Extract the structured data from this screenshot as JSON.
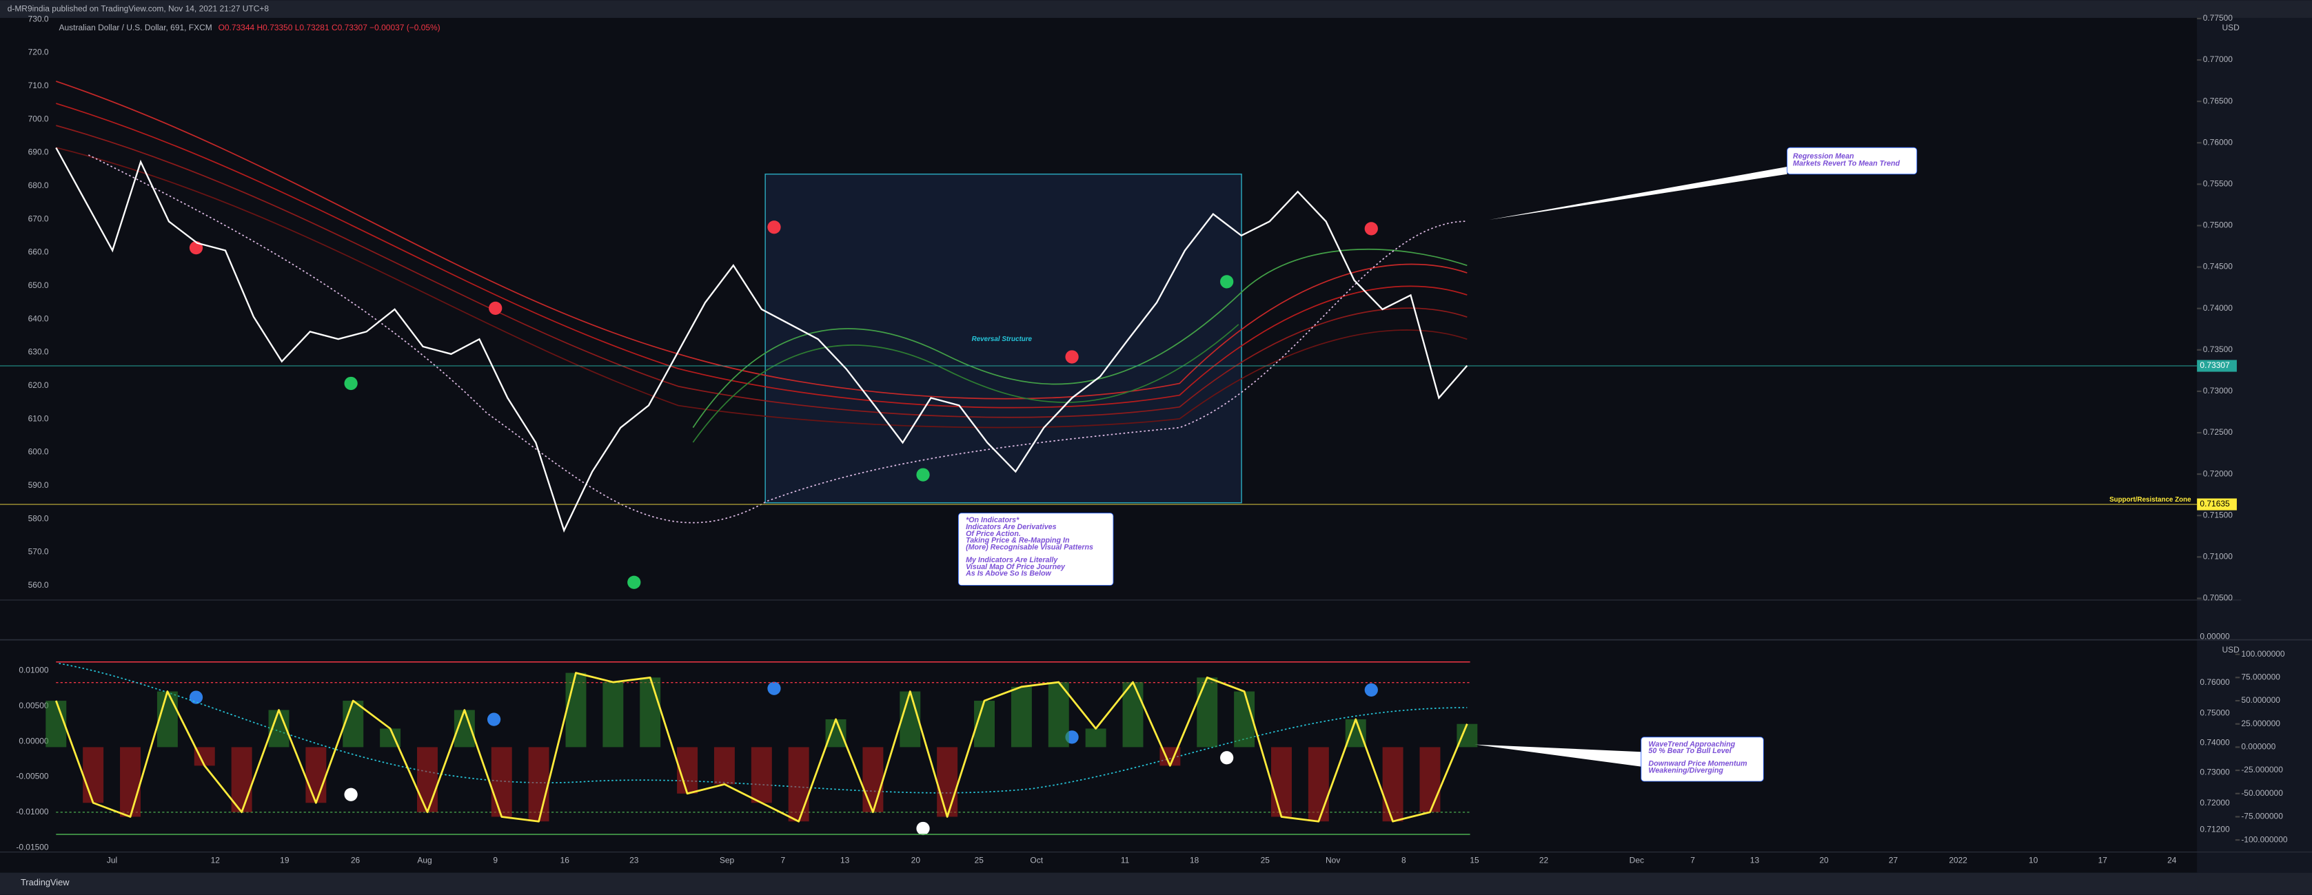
{
  "header": {
    "publisher": "d-MR9india published on TradingView.com, Nov 14, 2021 21:27 UTC+8",
    "symbol": "Australian Dollar / U.S. Dollar, 691, FXCM",
    "ohlc": "O0.73344 H0.73350 L0.73281 C0.73307 −0.00037 (−0.05%)"
  },
  "price_pane": {
    "currency": "USD",
    "ylim": [
      0.7048,
      0.7749
    ],
    "left_labels": [
      "730.0",
      "720.0",
      "710.0",
      "700.0",
      "690.0",
      "680.0",
      "670.0",
      "660.0",
      "650.0",
      "640.0",
      "630.0",
      "620.0",
      "610.0",
      "600.0",
      "590.0",
      "580.0",
      "570.0",
      "560.0"
    ],
    "right_ticks": [
      {
        "value": 0.775,
        "label": "0.77500"
      },
      {
        "value": 0.77,
        "label": "0.77000"
      },
      {
        "value": 0.765,
        "label": "0.76500"
      },
      {
        "value": 0.76,
        "label": "0.76000"
      },
      {
        "value": 0.755,
        "label": "0.75500"
      },
      {
        "value": 0.75,
        "label": "0.75000"
      },
      {
        "value": 0.745,
        "label": "0.74500"
      },
      {
        "value": 0.74,
        "label": "0.74000"
      },
      {
        "value": 0.735,
        "label": "0.73500"
      },
      {
        "value": 0.73,
        "label": "0.73000"
      },
      {
        "value": 0.725,
        "label": "0.72500"
      },
      {
        "value": 0.72,
        "label": "0.72000"
      },
      {
        "value": 0.715,
        "label": "0.71500"
      },
      {
        "value": 0.71,
        "label": "0.71000"
      },
      {
        "value": 0.705,
        "label": "0.70500"
      }
    ],
    "last_price": {
      "value": 0.73307,
      "label": "0.73307"
    },
    "support": {
      "value": 0.71635,
      "label": "0.71635",
      "name": "Support/Resistance Zone"
    },
    "close": [
      0.7594,
      0.7532,
      0.747,
      0.7577,
      0.7505,
      0.7479,
      0.747,
      0.739,
      0.7336,
      0.7372,
      0.7363,
      0.7372,
      0.7399,
      0.7354,
      0.7345,
      0.7363,
      0.7292,
      0.7238,
      0.7132,
      0.7203,
      0.7256,
      0.7283,
      0.7345,
      0.7407,
      0.7452,
      0.7399,
      0.7381,
      0.7363,
      0.7327,
      0.7283,
      0.7238,
      0.7292,
      0.7283,
      0.7238,
      0.7203,
      0.7256,
      0.7292,
      0.7318,
      0.7363,
      0.7407,
      0.747,
      0.7514,
      0.7488,
      0.7505,
      0.7541,
      0.7505,
      0.7434,
      0.7399,
      0.7416,
      0.7292,
      0.7331
    ]
  },
  "volume_pane": {
    "zero_label": "0.00000"
  },
  "oscillator_pane": {
    "currency": "USD",
    "ylim": [
      -113,
      114
    ],
    "left_labels": [
      "0.01000",
      "0.00500",
      "0.00000",
      "-0.00500",
      "-0.01000",
      "-0.01500"
    ],
    "right_ticks": [
      {
        "value": 100,
        "label": "100.000000"
      },
      {
        "value": 75,
        "label": "75.000000"
      },
      {
        "value": 50,
        "label": "50.000000"
      },
      {
        "value": 25,
        "label": "25.000000"
      },
      {
        "value": 0,
        "label": "0.000000"
      },
      {
        "value": -25,
        "label": "-25.000000"
      },
      {
        "value": -50,
        "label": "-50.000000"
      },
      {
        "value": -75,
        "label": "-75.000000"
      },
      {
        "value": -100,
        "label": "-100.000000"
      }
    ],
    "secondary_labels": [
      "0.76000",
      "0.75000",
      "0.74000",
      "0.73000",
      "0.72000",
      "0.71200"
    ],
    "wavetrend": [
      50,
      -60,
      -75,
      60,
      -20,
      -70,
      40,
      -60,
      50,
      20,
      -70,
      40,
      -75,
      -80,
      80,
      70,
      75,
      -50,
      -40,
      -60,
      -80,
      30,
      -70,
      60,
      -75,
      50,
      65,
      70,
      20,
      70,
      -20,
      75,
      60,
      -75,
      -80,
      30,
      -80,
      -70,
      25
    ]
  },
  "dates": [
    "Jul",
    "12",
    "19",
    "26",
    "Aug",
    "9",
    "16",
    "23",
    "Sep",
    "7",
    "13",
    "20",
    "25",
    "Oct",
    "11",
    "18",
    "25",
    "Nov",
    "8",
    "15",
    "22",
    "Dec",
    "7",
    "13",
    "20",
    "27",
    "2022",
    "10",
    "17",
    "24"
  ],
  "annotations": {
    "reversal": "Reversal Structure",
    "regression": [
      "Regression Mean",
      "Markets Revert To Mean Trend"
    ],
    "indicators": [
      "*On Indicators*",
      "Indicators Are Derivatives",
      "Of Price Action.",
      "Taking Price & Re-Mapping In",
      "(More) Recognisable Visual Patterns",
      "My Indicators Are Literally",
      "Visual Map Of Price Journey",
      "As Is Above So Is Below"
    ],
    "wavetrend": [
      "WaveTrend Approaching",
      "50 % Bear To Bull Level",
      "Downward Price Momentum",
      "Weakening/Diverging"
    ]
  },
  "footer": "TradingView"
}
